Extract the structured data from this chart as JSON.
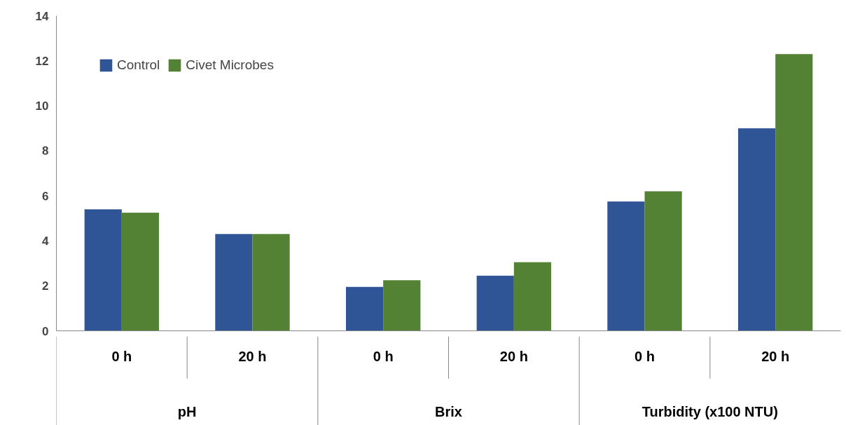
{
  "chart_data": {
    "type": "bar",
    "categories": [
      "0 h",
      "20 h",
      "0 h",
      "20 h",
      "0 h",
      "20 h"
    ],
    "series": [
      {
        "name": "Control",
        "color": "#2f5597",
        "values": [
          5.4,
          4.3,
          1.95,
          2.45,
          5.75,
          9.0
        ]
      },
      {
        "name": "Civet Microbes",
        "color": "#548235",
        "values": [
          5.25,
          4.3,
          2.25,
          3.05,
          6.2,
          12.3
        ]
      }
    ],
    "annotations": [
      "pH",
      "Brix",
      "Turbidity (x100 NTU)"
    ],
    "ylim": [
      0,
      14
    ],
    "yticks": [
      0,
      2,
      4,
      6,
      8,
      10,
      12,
      14
    ],
    "grid": false,
    "legend": "top left"
  }
}
